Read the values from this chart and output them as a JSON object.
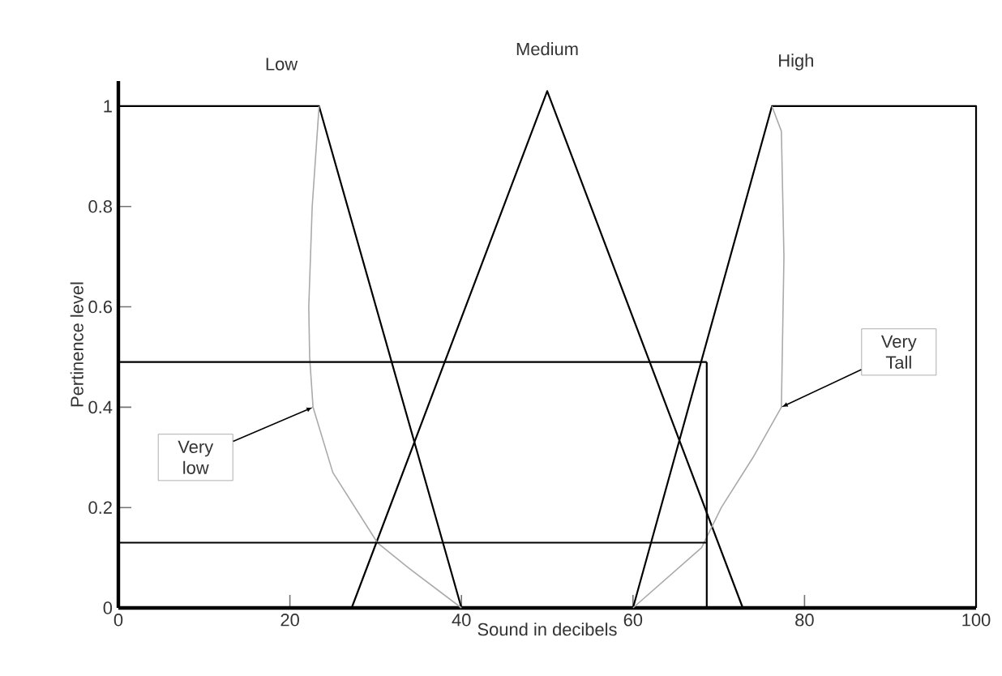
{
  "chart_data": {
    "type": "line",
    "xlabel": "Sound in decibels",
    "ylabel": "Pertinence level",
    "xlim": [
      0,
      100
    ],
    "ylim": [
      0,
      1.05
    ],
    "xticks": [
      0,
      20,
      40,
      60,
      80,
      100
    ],
    "yticks": [
      0,
      0.2,
      0.4,
      0.6,
      0.8,
      1
    ],
    "grid": false,
    "legend": false,
    "marker": "none",
    "line_style": "solid",
    "series": [
      {
        "name": "Low",
        "color": "#000000",
        "x": [
          0,
          23.4,
          40
        ],
        "values": [
          1,
          1,
          0
        ]
      },
      {
        "name": "Medium",
        "color": "#000000",
        "x": [
          27.2,
          50,
          72.8
        ],
        "values": [
          0,
          1.03,
          0
        ]
      },
      {
        "name": "High",
        "color": "#000000",
        "x": [
          60,
          76.2,
          100,
          100
        ],
        "values": [
          0,
          1,
          1,
          0
        ]
      },
      {
        "name": "Very low",
        "color": "#aaaaaa",
        "x": [
          23.4,
          22.6,
          22.2,
          22.3,
          22.7,
          25,
          30.2,
          33.8,
          40
        ],
        "values": [
          1,
          0.8,
          0.6,
          0.5,
          0.4,
          0.27,
          0.13,
          0.08,
          0
        ]
      },
      {
        "name": "Very Tall",
        "color": "#aaaaaa",
        "x": [
          60,
          68,
          70.3,
          74,
          77.3,
          77.6,
          77.3,
          76.2
        ],
        "values": [
          0,
          0.12,
          0.2,
          0.3,
          0.4,
          0.7,
          0.95,
          1
        ]
      },
      {
        "color": "#000000",
        "x": [
          0,
          40,
          68.6
        ],
        "values": [
          0.49,
          0.49,
          0.49
        ]
      },
      {
        "color": "#000000",
        "x": [
          0,
          40,
          68.6
        ],
        "values": [
          0.13,
          0.13,
          0.13
        ]
      },
      {
        "color": "#000000",
        "x": [
          68.6,
          68.6
        ],
        "values": [
          0,
          0.49
        ]
      }
    ]
  }
}
